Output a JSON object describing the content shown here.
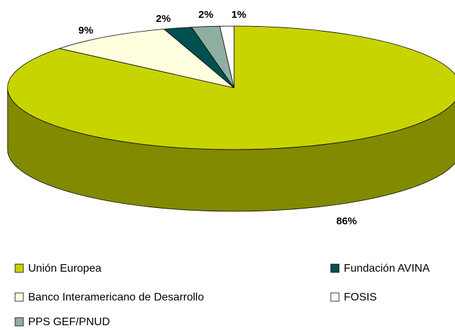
{
  "chart_data": {
    "type": "pie3d",
    "categories": [
      "Unión Europea",
      "Banco Interamericano de Desarrollo",
      "Fundación AVINA",
      "PPS GEF/PNUD",
      "FOSIS"
    ],
    "values": [
      86,
      9,
      2,
      2,
      1
    ],
    "value_labels": [
      "86%",
      "9%",
      "2%",
      "2%",
      "1%"
    ],
    "colors": [
      "#c8d400",
      "#ffffe0",
      "#005050",
      "#8fb0a0",
      "#ffffff"
    ]
  }
}
